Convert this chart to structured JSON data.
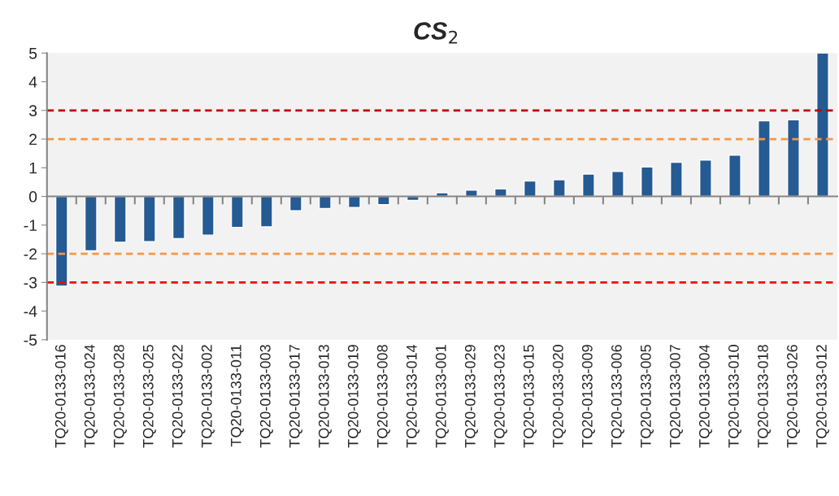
{
  "chart_data": {
    "type": "bar",
    "title": "CS$_{2}$",
    "categories": [
      "TQ20-0133-016",
      "TQ20-0133-024",
      "TQ20-0133-028",
      "TQ20-0133-025",
      "TQ20-0133-022",
      "TQ20-0133-002",
      "TQ20-0133-011",
      "TQ20-0133-003",
      "TQ20-0133-017",
      "TQ20-0133-013",
      "TQ20-0133-019",
      "TQ20-0133-008",
      "TQ20-0133-014",
      "TQ20-0133-001",
      "TQ20-0133-029",
      "TQ20-0133-023",
      "TQ20-0133-015",
      "TQ20-0133-020",
      "TQ20-0133-009",
      "TQ20-0133-006",
      "TQ20-0133-005",
      "TQ20-0133-007",
      "TQ20-0133-004",
      "TQ20-0133-010",
      "TQ20-0133-018",
      "TQ20-0133-026",
      "TQ20-0133-012"
    ],
    "values": [
      -3.13,
      -1.9,
      -1.6,
      -1.58,
      -1.47,
      -1.35,
      -1.08,
      -1.06,
      -0.5,
      -0.42,
      -0.39,
      -0.29,
      -0.14,
      0.13,
      0.22,
      0.26,
      0.54,
      0.58,
      0.78,
      0.87,
      1.03,
      1.19,
      1.27,
      1.44,
      2.64,
      2.67,
      5
    ],
    "color": "#255a93",
    "ylim": [
      -5,
      5
    ],
    "yticks": [
      -5,
      -4,
      -3,
      -2,
      -1,
      0,
      1,
      2,
      3,
      4,
      5
    ],
    "grid": false,
    "legend": false,
    "ref_lines": [
      {
        "axis": "y",
        "value": 3,
        "color": "#c00000",
        "line_style": "dashed"
      },
      {
        "axis": "y",
        "value": 2,
        "color": "#f79646",
        "line_style": "dashed"
      },
      {
        "axis": "y",
        "value": -2,
        "color": "#f79646",
        "line_style": "dashed"
      },
      {
        "axis": "y",
        "value": -3,
        "color": "#ff0000",
        "line_style": "dashed"
      }
    ]
  }
}
